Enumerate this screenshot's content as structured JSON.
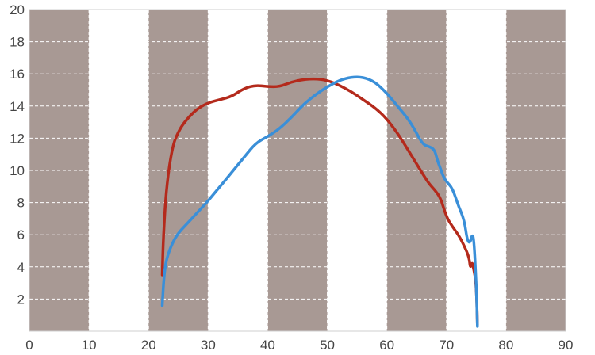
{
  "chart_data": {
    "type": "line",
    "title": "",
    "xlabel": "",
    "ylabel": "",
    "xlim": [
      0,
      90
    ],
    "ylim": [
      0,
      20
    ],
    "x_ticks": [
      "0",
      "10",
      "20",
      "30",
      "40",
      "50",
      "60",
      "70",
      "80",
      "90"
    ],
    "y_ticks": [
      "2",
      "4",
      "6",
      "8",
      "10",
      "12",
      "14",
      "16",
      "18",
      "20"
    ],
    "shaded_bands": [
      [
        0,
        10
      ],
      [
        20,
        30
      ],
      [
        40,
        50
      ],
      [
        60,
        70
      ],
      [
        80,
        90
      ]
    ],
    "band_color": "#a89994",
    "grid": true,
    "series": [
      {
        "color": "#b42a1c",
        "x": [
          22.3,
          22.5,
          23,
          24,
          25,
          26,
          28,
          30,
          32,
          34,
          36,
          38,
          40,
          42,
          44,
          46,
          48,
          50,
          52,
          54,
          56,
          58,
          60,
          62,
          64,
          66,
          67,
          68,
          69,
          70,
          71,
          72,
          73,
          73.8,
          74,
          74.3,
          74.5,
          75,
          75.2
        ],
        "y": [
          3.5,
          6.0,
          9.0,
          11.5,
          12.4,
          13.0,
          13.8,
          14.2,
          14.4,
          14.6,
          15.1,
          15.3,
          15.2,
          15.2,
          15.5,
          15.65,
          15.7,
          15.6,
          15.3,
          14.9,
          14.4,
          13.9,
          13.2,
          12.2,
          11.0,
          9.8,
          9.2,
          8.8,
          8.3,
          7.1,
          6.5,
          6.0,
          5.3,
          4.6,
          3.9,
          4.3,
          4.0,
          3.0,
          0.4
        ]
      },
      {
        "color": "#3a8fd8",
        "x": [
          22.3,
          22.6,
          23,
          24,
          25,
          26,
          28,
          30,
          32,
          34,
          36,
          38,
          40,
          42,
          44,
          46,
          48,
          50,
          52,
          54,
          56,
          58,
          60,
          62,
          64,
          66,
          67,
          68,
          68.5,
          69,
          69.5,
          70,
          71,
          72,
          73,
          73.5,
          74,
          74.3,
          74.6,
          75,
          75.2
        ],
        "y": [
          1.6,
          3.5,
          4.5,
          5.5,
          6.1,
          6.5,
          7.3,
          8.1,
          9.0,
          9.9,
          10.8,
          11.7,
          12.1,
          12.6,
          13.3,
          14.1,
          14.7,
          15.2,
          15.6,
          15.8,
          15.8,
          15.5,
          14.8,
          13.9,
          13.0,
          11.6,
          11.5,
          11.3,
          10.6,
          10.1,
          9.6,
          9.3,
          8.9,
          7.8,
          6.9,
          5.6,
          5.5,
          6.0,
          5.8,
          3.0,
          0.3
        ]
      }
    ]
  }
}
